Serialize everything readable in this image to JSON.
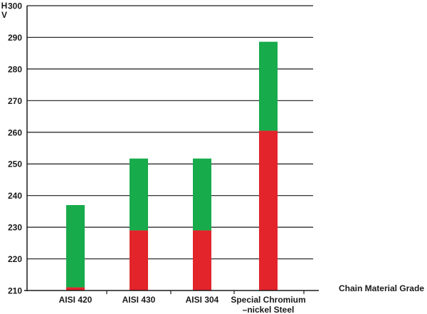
{
  "chart_data": {
    "type": "bar",
    "stacked_range": true,
    "ylabel": "HV",
    "xlabel": "Chain Material Grade",
    "ylim": [
      210,
      300
    ],
    "yticks": [
      210,
      220,
      230,
      240,
      250,
      260,
      270,
      280,
      290,
      300
    ],
    "grid": true,
    "categories": [
      [
        "AISI 420"
      ],
      [
        "AISI 430"
      ],
      [
        "AISI 304"
      ],
      [
        "Special Chromium",
        "–nickel Steel"
      ]
    ],
    "series": [
      {
        "values": [
          211,
          229,
          229,
          260.5
        ],
        "color": "#e3242b"
      },
      {
        "values": [
          237,
          251.7,
          251.7,
          288.6
        ],
        "color": "#17ab4b"
      }
    ],
    "colors": {
      "axis": "#1a1a1a",
      "grid": "#1a1a1a"
    }
  }
}
